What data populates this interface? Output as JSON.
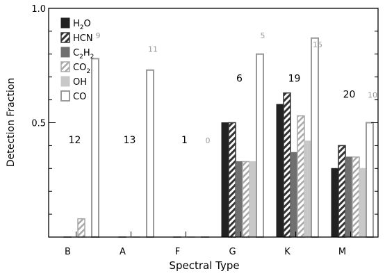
{
  "chart_data": {
    "type": "bar",
    "xlabel": "Spectral Type",
    "ylabel": "Detection Fraction",
    "ylim": [
      0,
      1.0
    ],
    "y_ticks": [
      0.5,
      1.0
    ],
    "y_tick_labels": [
      "0.5",
      "1.0"
    ],
    "legend_position": "top-left",
    "categories": [
      "B",
      "A",
      "F",
      "G",
      "K",
      "M"
    ],
    "series": [
      {
        "name": "H2O",
        "label_main": "H",
        "label_sub": "2",
        "label_tail": "O",
        "style": "solid-black",
        "values": [
          0.0,
          0.0,
          0.0,
          0.5,
          0.58,
          0.3
        ]
      },
      {
        "name": "HCN",
        "label_main": "HCN",
        "label_sub": "",
        "label_tail": "",
        "style": "hatch-dark",
        "values": [
          0.0,
          0.0,
          0.0,
          0.5,
          0.63,
          0.4
        ]
      },
      {
        "name": "C2H2",
        "label_main": "C",
        "label_sub": "2",
        "label_tail": "H",
        "label_sub2": "2",
        "style": "solid-gray",
        "values": [
          0.0,
          0.0,
          0.0,
          0.33,
          0.37,
          0.35
        ]
      },
      {
        "name": "CO2",
        "label_main": "CO",
        "label_sub": "2",
        "label_tail": "",
        "style": "hatch-light",
        "values": [
          0.08,
          0.0,
          0.0,
          0.33,
          0.53,
          0.35
        ]
      },
      {
        "name": "OH",
        "label_main": "OH",
        "label_sub": "",
        "label_tail": "",
        "style": "solid-lightgray",
        "values": [
          0.0,
          0.0,
          0.0,
          0.33,
          0.42,
          0.3
        ]
      },
      {
        "name": "CO",
        "label_main": "CO",
        "label_sub": "",
        "label_tail": "",
        "style": "open",
        "values": [
          0.78,
          0.73,
          0.0,
          0.8,
          0.87,
          0.5
        ]
      }
    ],
    "annotations_primary": [
      {
        "category": "B",
        "text": "12",
        "y": 0.41
      },
      {
        "category": "A",
        "text": "13",
        "y": 0.41
      },
      {
        "category": "F",
        "text": "1",
        "y": 0.41
      },
      {
        "category": "G",
        "text": "6",
        "y": 0.68
      },
      {
        "category": "K",
        "text": "19",
        "y": 0.68
      },
      {
        "category": "M",
        "text": "20",
        "y": 0.61
      }
    ],
    "annotations_co": [
      {
        "category": "B",
        "text": "9",
        "y": 0.87
      },
      {
        "category": "A",
        "text": "11",
        "y": 0.81
      },
      {
        "category": "F",
        "text": "0",
        "y": 0.41
      },
      {
        "category": "G",
        "text": "5",
        "y": 0.87
      },
      {
        "category": "K",
        "text": "15",
        "y": 0.83
      },
      {
        "category": "M",
        "text": "10",
        "y": 0.61
      }
    ]
  },
  "colors": {
    "solid_black": "#222222",
    "solid_gray": "#707070",
    "lightgray": "#c8c8c8",
    "co_outline": "#9a9a9a",
    "annotation_co": "#9a9a9a",
    "axis": "#000000"
  }
}
